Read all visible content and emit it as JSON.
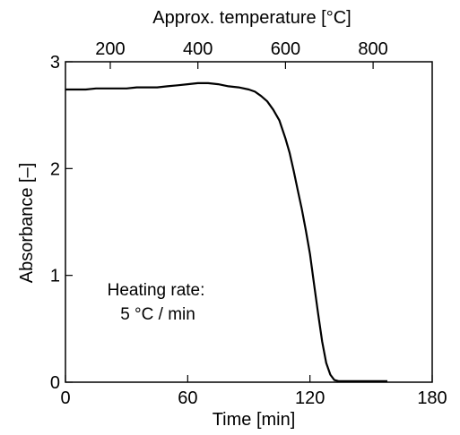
{
  "chart_data": {
    "type": "line",
    "title": "",
    "xlabel": "Time [min]",
    "ylabel": "Absorbance [–]",
    "top_xlabel": "Approx. temperature [°C]",
    "xlim": [
      0,
      180
    ],
    "ylim": [
      0,
      3
    ],
    "x_ticks": [
      0,
      60,
      120,
      180
    ],
    "y_ticks": [
      0,
      1,
      2,
      3
    ],
    "top_ticks": [
      {
        "label": "200",
        "x_min": 22
      },
      {
        "label": "400",
        "x_min": 65
      },
      {
        "label": "600",
        "x_min": 108
      },
      {
        "label": "800",
        "x_min": 151
      }
    ],
    "grid": false,
    "annotation": [
      "Heating rate:",
      "5 °C / min"
    ],
    "series": [
      {
        "color": "#000000",
        "x": [
          0,
          5,
          10,
          15,
          20,
          25,
          30,
          35,
          40,
          45,
          50,
          55,
          60,
          65,
          70,
          75,
          80,
          85,
          90,
          93,
          96,
          99,
          102,
          105,
          108,
          110,
          112,
          114,
          116,
          118,
          120,
          122,
          124,
          126,
          128,
          130,
          132,
          134,
          136,
          140,
          145,
          150,
          155,
          158
        ],
        "y": [
          2.74,
          2.74,
          2.74,
          2.75,
          2.75,
          2.75,
          2.75,
          2.76,
          2.76,
          2.76,
          2.77,
          2.78,
          2.79,
          2.8,
          2.8,
          2.79,
          2.77,
          2.76,
          2.74,
          2.72,
          2.68,
          2.63,
          2.55,
          2.45,
          2.28,
          2.15,
          1.98,
          1.8,
          1.62,
          1.42,
          1.2,
          0.92,
          0.64,
          0.38,
          0.18,
          0.07,
          0.02,
          0.01,
          0.01,
          0.01,
          0.01,
          0.01,
          0.01,
          0.01
        ]
      }
    ]
  }
}
